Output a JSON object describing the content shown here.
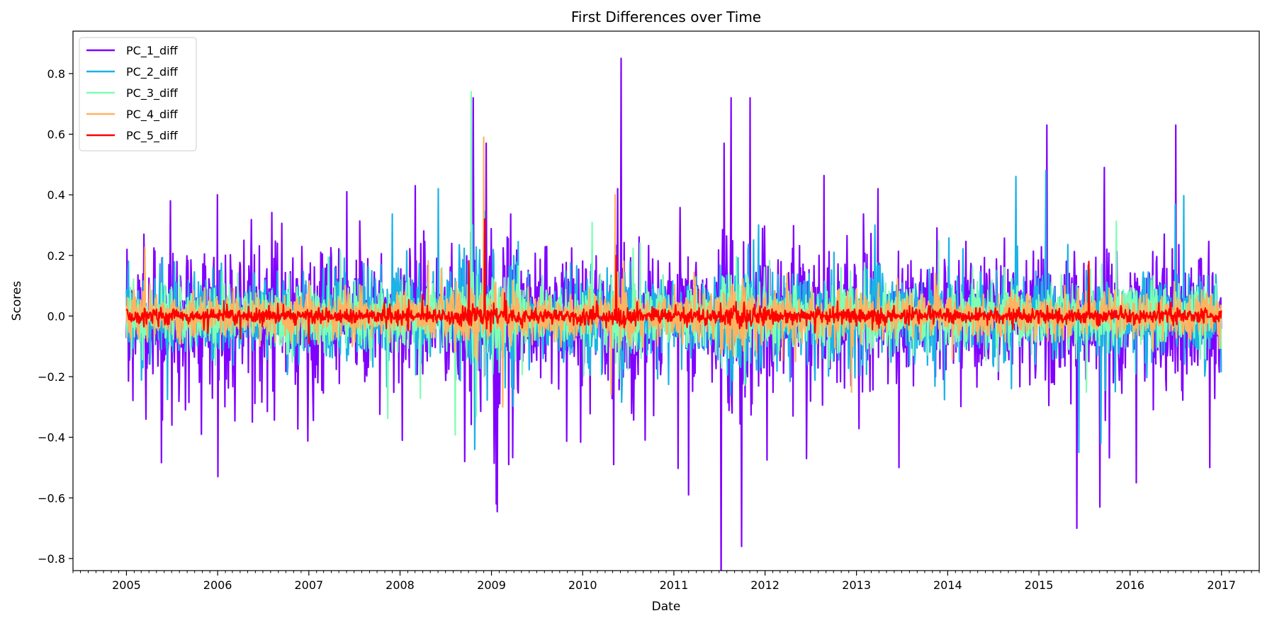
{
  "chart_data": {
    "type": "line",
    "title": "First Differences over Time",
    "xlabel": "Date",
    "ylabel": "Scores",
    "xlim": [
      "2004-06-01",
      "2017-06-01"
    ],
    "ylim": [
      -0.84,
      0.94
    ],
    "x_ticks": [
      "2005",
      "2006",
      "2007",
      "2008",
      "2009",
      "2010",
      "2011",
      "2012",
      "2013",
      "2014",
      "2015",
      "2016",
      "2017"
    ],
    "y_ticks": [
      "0.8",
      "0.6",
      "0.4",
      "0.2",
      "0.0",
      "−0.2",
      "−0.4",
      "−0.6",
      "−0.8"
    ],
    "x_start": "2005-01-01",
    "x_end": "2017-01-01",
    "sampling": "daily",
    "grid": false,
    "legend_position": "top-left",
    "series": [
      {
        "name": "PC_1_diff",
        "color": "#8000ff",
        "amplitude": 0.11,
        "peaks": [
          {
            "date": "2005-01-03",
            "value": 0.22
          },
          {
            "date": "2005-03-20",
            "value": -0.34
          },
          {
            "date": "2005-06-25",
            "value": 0.38
          },
          {
            "date": "2005-07-01",
            "value": -0.36
          },
          {
            "date": "2005-10-28",
            "value": -0.39
          },
          {
            "date": "2005-12-30",
            "value": 0.4
          },
          {
            "date": "2006-01-02",
            "value": -0.53
          },
          {
            "date": "2006-05-20",
            "value": -0.35
          },
          {
            "date": "2007-06-01",
            "value": 0.41
          },
          {
            "date": "2008-01-10",
            "value": -0.41
          },
          {
            "date": "2008-03-01",
            "value": 0.43
          },
          {
            "date": "2008-09-15",
            "value": -0.48
          },
          {
            "date": "2008-10-20",
            "value": 0.72
          },
          {
            "date": "2008-12-10",
            "value": 0.57
          },
          {
            "date": "2009-01-20",
            "value": -0.62
          },
          {
            "date": "2009-03-10",
            "value": -0.49
          },
          {
            "date": "2010-05-05",
            "value": -0.49
          },
          {
            "date": "2010-05-20",
            "value": 0.42
          },
          {
            "date": "2010-06-03",
            "value": 0.85
          },
          {
            "date": "2011-02-28",
            "value": -0.59
          },
          {
            "date": "2011-07-20",
            "value": 0.57
          },
          {
            "date": "2011-08-18",
            "value": 0.72
          },
          {
            "date": "2011-09-28",
            "value": -0.76
          },
          {
            "date": "2011-11-01",
            "value": 0.72
          },
          {
            "date": "2012-06-15",
            "value": -0.47
          },
          {
            "date": "2013-03-28",
            "value": 0.42
          },
          {
            "date": "2013-06-20",
            "value": -0.5
          },
          {
            "date": "2015-02-01",
            "value": 0.63
          },
          {
            "date": "2015-06-01",
            "value": -0.7
          },
          {
            "date": "2015-09-01",
            "value": -0.63
          },
          {
            "date": "2015-09-20",
            "value": 0.49
          },
          {
            "date": "2016-01-25",
            "value": -0.55
          },
          {
            "date": "2016-07-01",
            "value": 0.63
          },
          {
            "date": "2016-11-15",
            "value": -0.5
          }
        ]
      },
      {
        "name": "PC_2_diff",
        "color": "#1ab2e8",
        "amplitude": 0.07,
        "peaks": [
          {
            "date": "2008-06-01",
            "value": 0.42
          },
          {
            "date": "2008-10-25",
            "value": -0.44
          },
          {
            "date": "2013-03-15",
            "value": 0.3
          },
          {
            "date": "2015-01-28",
            "value": 0.48
          },
          {
            "date": "2015-06-10",
            "value": -0.45
          },
          {
            "date": "2015-09-05",
            "value": -0.42
          }
        ]
      },
      {
        "name": "PC_3_diff",
        "color": "#80ffb4",
        "amplitude": 0.05,
        "peaks": [
          {
            "date": "2008-10-12",
            "value": 0.74
          },
          {
            "date": "2008-11-01",
            "value": -0.33
          }
        ]
      },
      {
        "name": "PC_4_diff",
        "color": "#ffb360",
        "amplitude": 0.035,
        "peaks": [
          {
            "date": "2008-12-01",
            "value": 0.59
          },
          {
            "date": "2009-02-15",
            "value": -0.3
          },
          {
            "date": "2010-05-10",
            "value": 0.4
          },
          {
            "date": "2010-04-25",
            "value": -0.26
          },
          {
            "date": "2012-05-01",
            "value": -0.15
          }
        ]
      },
      {
        "name": "PC_5_diff",
        "color": "#ff0000",
        "amplitude": 0.012,
        "peaks": [
          {
            "date": "2008-12-05",
            "value": 0.32
          },
          {
            "date": "2008-10-01",
            "value": 0.18
          },
          {
            "date": "2010-05-15",
            "value": 0.2
          },
          {
            "date": "2015-07-20",
            "value": 0.18
          }
        ]
      }
    ]
  }
}
